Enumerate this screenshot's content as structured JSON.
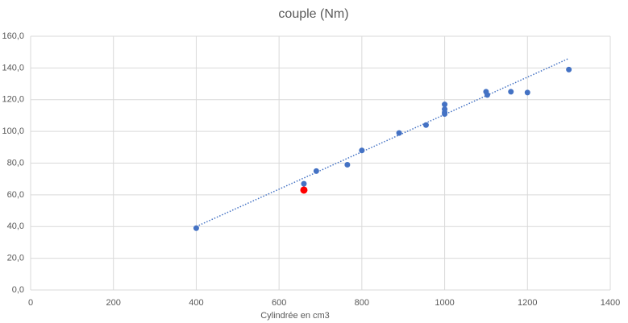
{
  "chart_data": {
    "type": "scatter",
    "title": "couple (Nm)",
    "x_label": "Cylindrée en cm3",
    "series": [
      {
        "color": "#4472c4",
        "x": [
          400,
          660,
          690,
          765,
          800,
          890,
          955,
          1000,
          1000,
          1000,
          1000,
          1100,
          1103,
          1160,
          1200,
          1300
        ],
        "y": [
          39,
          67,
          75,
          79,
          88,
          99,
          104,
          117,
          114,
          112,
          111,
          125,
          123,
          125,
          124.5,
          139
        ]
      },
      {
        "color": "#ff0000",
        "x": [
          660
        ],
        "y": [
          63
        ]
      }
    ],
    "trendline": {
      "color": "#4472c4",
      "x": [
        400,
        1300
      ],
      "y": [
        40,
        146
      ]
    },
    "xlim": [
      0,
      1400
    ],
    "xticks": [
      0,
      200,
      400,
      600,
      800,
      1000,
      1200,
      1400
    ],
    "ylim": [
      0,
      160
    ],
    "yticks": [
      {
        "value": 0,
        "label": "0,0"
      },
      {
        "value": 20,
        "label": "20,0"
      },
      {
        "value": 40,
        "label": "40,0"
      },
      {
        "value": 60,
        "label": "60,0"
      },
      {
        "value": 80,
        "label": "80,0"
      },
      {
        "value": 100,
        "label": "100,0"
      },
      {
        "value": 120,
        "label": "120,0"
      },
      {
        "value": 140,
        "label": "140,0"
      },
      {
        "value": 160,
        "label": "160,0"
      }
    ],
    "grid": true
  }
}
